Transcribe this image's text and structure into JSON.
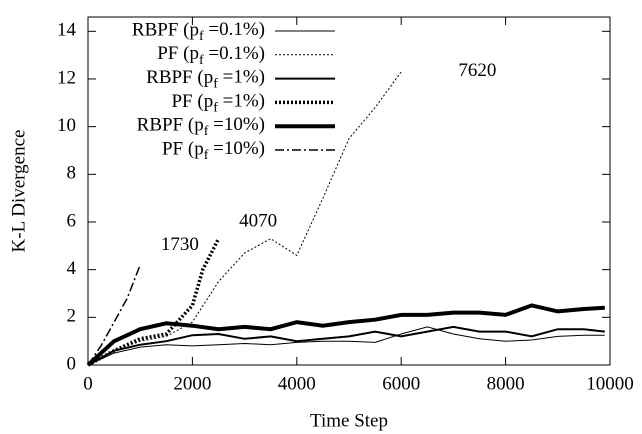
{
  "chart_data": {
    "type": "line",
    "xlabel": "Time Step",
    "ylabel": "K-L Divergence",
    "xlim": [
      0,
      10000
    ],
    "xticks": [
      0,
      2000,
      4000,
      6000,
      8000,
      10000
    ],
    "ylim": [
      0,
      14.6
    ],
    "yticks": [
      0,
      2,
      4,
      6,
      8,
      10,
      12,
      14
    ],
    "legend": "top-left",
    "series": [
      {
        "name": "RBPF (pf =0.1%)",
        "color": "#000000",
        "dash": "solid",
        "width": 1,
        "x": [
          0,
          500,
          1000,
          1500,
          2000,
          2500,
          3000,
          3500,
          4000,
          4500,
          5000,
          5500,
          6000,
          6500,
          7000,
          7500,
          8000,
          8500,
          9000,
          9500,
          9900
        ],
        "values": [
          0,
          0.5,
          0.75,
          0.85,
          0.8,
          0.85,
          0.9,
          0.85,
          0.95,
          1.0,
          1.0,
          0.95,
          1.3,
          1.6,
          1.3,
          1.1,
          1.0,
          1.05,
          1.2,
          1.25,
          1.25
        ]
      },
      {
        "name": "PF (pf =0.1%)",
        "color": "#000000",
        "dash": "dotted",
        "width": 1,
        "x": [
          0,
          500,
          1000,
          1500,
          2000,
          2500,
          3000,
          3500,
          4000,
          4500,
          5000,
          5500,
          6000
        ],
        "values": [
          0,
          0.6,
          1.0,
          1.2,
          1.8,
          3.5,
          4.7,
          5.3,
          4.6,
          7.0,
          9.5,
          10.8,
          12.3
        ]
      },
      {
        "name": "RBPF (pf =1%)",
        "color": "#000000",
        "dash": "solid",
        "width": 2,
        "x": [
          0,
          500,
          1000,
          1500,
          2000,
          2500,
          3000,
          3500,
          4000,
          4500,
          5000,
          5500,
          6000,
          6500,
          7000,
          7500,
          8000,
          8500,
          9000,
          9500,
          9900
        ],
        "values": [
          0,
          0.6,
          0.85,
          1.0,
          1.25,
          1.3,
          1.1,
          1.2,
          1.0,
          1.1,
          1.2,
          1.4,
          1.2,
          1.4,
          1.6,
          1.4,
          1.4,
          1.2,
          1.5,
          1.5,
          1.4
        ]
      },
      {
        "name": "PF (pf =1%)",
        "color": "#000000",
        "dash": "dotted",
        "width": 3.5,
        "x": [
          0,
          500,
          1000,
          1500,
          2000,
          2200,
          2500
        ],
        "values": [
          0,
          0.6,
          1.1,
          1.3,
          2.5,
          4.0,
          5.3
        ]
      },
      {
        "name": "RBPF (pf =10%)",
        "color": "#000000",
        "dash": "solid",
        "width": 4,
        "x": [
          0,
          500,
          1000,
          1500,
          2000,
          2500,
          3000,
          3500,
          4000,
          4500,
          5000,
          5500,
          6000,
          6500,
          7000,
          7500,
          8000,
          8500,
          9000,
          9500,
          9900
        ],
        "values": [
          0,
          1.0,
          1.5,
          1.75,
          1.65,
          1.5,
          1.6,
          1.5,
          1.8,
          1.65,
          1.8,
          1.9,
          2.1,
          2.1,
          2.2,
          2.2,
          2.1,
          2.5,
          2.25,
          2.35,
          2.4
        ]
      },
      {
        "name": "PF (pf =10%)",
        "color": "#000000",
        "dash": "dashdot",
        "width": 1.5,
        "x": [
          0,
          250,
          500,
          750,
          1000
        ],
        "values": [
          0,
          0.8,
          1.8,
          2.8,
          4.2
        ]
      }
    ],
    "annotations": [
      {
        "text": "1730",
        "x": 1300,
        "y": 5.0
      },
      {
        "text": "4070",
        "x": 2800,
        "y": 6.0
      },
      {
        "text": "7620",
        "x": 7000,
        "y": 12.3
      }
    ]
  }
}
